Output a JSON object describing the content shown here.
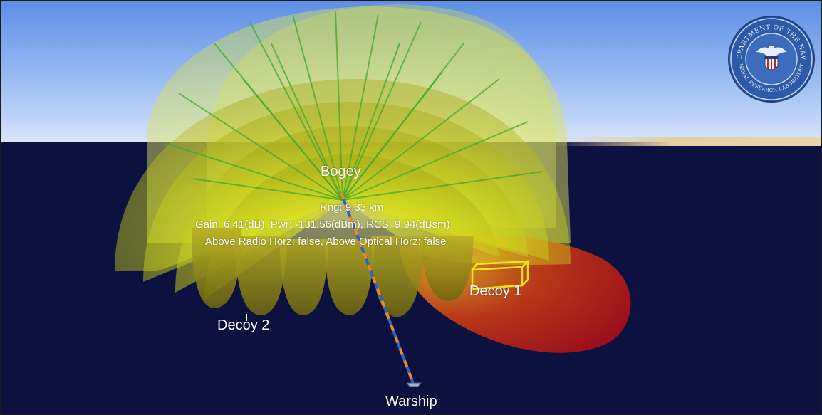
{
  "targets": {
    "bogey": "Bogey",
    "warship": "Warship",
    "decoy_1": "Decoy 1",
    "decoy_2": "Decoy 2"
  },
  "readout": {
    "range": "Rng: 9.33 km",
    "gain_power_rcs": "Gain: 6.41(dB), Pwr: -131.56(dBm), RCS: 9.94(dBsm)",
    "horizons": "Above Radio Horz: false, Above Optical Horz: false"
  },
  "emblem": {
    "seal_text": "DEPARTMENT OF THE NAVY",
    "lab_text": "NAVAL RESEARCH LABORATORY"
  },
  "colors": {
    "sky": "#87aef0",
    "sea": "#0d1140",
    "lobe_yellow": "#d8e21a",
    "lobe_green": "#3fa82c",
    "lobe_red": "#b8161a",
    "emblem_blue": "#2d5aa8",
    "label": "#ffffff"
  },
  "icons": {
    "emblem": "navy-seal-icon"
  }
}
